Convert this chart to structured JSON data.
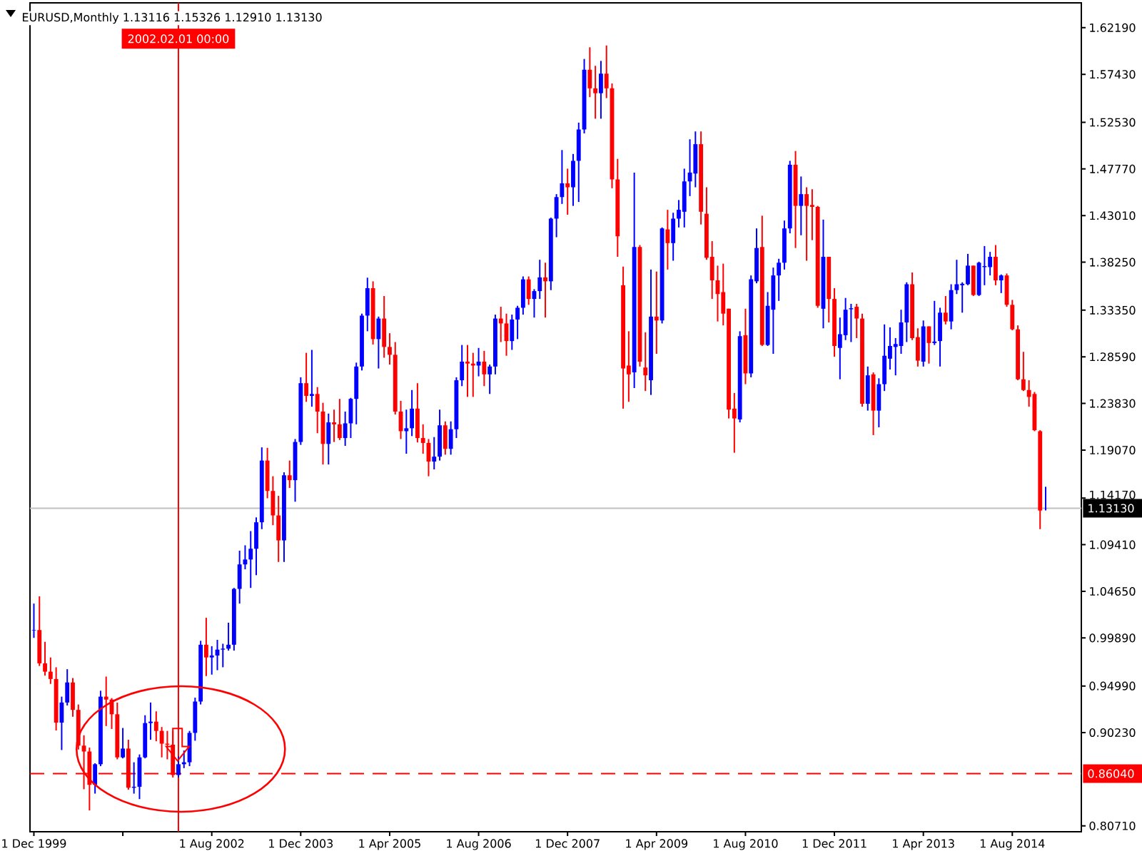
{
  "chart_data": {
    "type": "candlestick",
    "title": "EURUSD,Monthly 1.13116 1.15326 1.12910 1.13130",
    "x": [
      "1999-12",
      "2000-01",
      "2000-02",
      "2000-03",
      "2000-04",
      "2000-05",
      "2000-06",
      "2000-07",
      "2000-08",
      "2000-09",
      "2000-10",
      "2000-11",
      "2000-12",
      "2001-01",
      "2001-02",
      "2001-03",
      "2001-04",
      "2001-05",
      "2001-06",
      "2001-07",
      "2001-08",
      "2001-09",
      "2001-10",
      "2001-11",
      "2001-12",
      "2002-01",
      "2002-02",
      "2002-03",
      "2002-04",
      "2002-05",
      "2002-06",
      "2002-07",
      "2002-08",
      "2002-09",
      "2002-10",
      "2002-11",
      "2002-12",
      "2003-01",
      "2003-02",
      "2003-03",
      "2003-04",
      "2003-05",
      "2003-06",
      "2003-07",
      "2003-08",
      "2003-09",
      "2003-10",
      "2003-11",
      "2003-12",
      "2004-01",
      "2004-02",
      "2004-03",
      "2004-04",
      "2004-05",
      "2004-06",
      "2004-07",
      "2004-08",
      "2004-09",
      "2004-10",
      "2004-11",
      "2004-12",
      "2005-01",
      "2005-02",
      "2005-03",
      "2005-04",
      "2005-05",
      "2005-06",
      "2005-07",
      "2005-08",
      "2005-09",
      "2005-10",
      "2005-11",
      "2005-12",
      "2006-01",
      "2006-02",
      "2006-03",
      "2006-04",
      "2006-05",
      "2006-06",
      "2006-07",
      "2006-08",
      "2006-09",
      "2006-10",
      "2006-11",
      "2006-12",
      "2007-01",
      "2007-02",
      "2007-03",
      "2007-04",
      "2007-05",
      "2007-06",
      "2007-07",
      "2007-08",
      "2007-09",
      "2007-10",
      "2007-11",
      "2007-12",
      "2008-01",
      "2008-02",
      "2008-03",
      "2008-04",
      "2008-05",
      "2008-06",
      "2008-07",
      "2008-08",
      "2008-09",
      "2008-10",
      "2008-11",
      "2008-12",
      "2009-01",
      "2009-02",
      "2009-03",
      "2009-04",
      "2009-05",
      "2009-06",
      "2009-07",
      "2009-08",
      "2009-09",
      "2009-10",
      "2009-11",
      "2009-12",
      "2010-01",
      "2010-02",
      "2010-03",
      "2010-04",
      "2010-05",
      "2010-06",
      "2010-07",
      "2010-08",
      "2010-09",
      "2010-10",
      "2010-11",
      "2010-12",
      "2011-01",
      "2011-02",
      "2011-03",
      "2011-04",
      "2011-05",
      "2011-06",
      "2011-07",
      "2011-08",
      "2011-09",
      "2011-10",
      "2011-11",
      "2011-12",
      "2012-01",
      "2012-02",
      "2012-03",
      "2012-04",
      "2012-05",
      "2012-06",
      "2012-07",
      "2012-08",
      "2012-09",
      "2012-10",
      "2012-11",
      "2012-12",
      "2013-01",
      "2013-02",
      "2013-03",
      "2013-04",
      "2013-05",
      "2013-06",
      "2013-07",
      "2013-08",
      "2013-09",
      "2013-10",
      "2013-11",
      "2013-12",
      "2014-01",
      "2014-02",
      "2014-03",
      "2014-04",
      "2014-05",
      "2014-06",
      "2014-07",
      "2014-08",
      "2014-09",
      "2014-10",
      "2014-11",
      "2014-12",
      "2015-01",
      "2015-02"
    ],
    "ohlc": [
      [
        1.0065,
        1.034,
        0.999,
        1.007
      ],
      [
        1.007,
        1.0414,
        0.9703,
        0.973
      ],
      [
        0.973,
        0.995,
        0.9605,
        0.9645
      ],
      [
        0.9645,
        0.979,
        0.952,
        0.957
      ],
      [
        0.957,
        0.969,
        0.9045,
        0.9125
      ],
      [
        0.9125,
        0.939,
        0.8845,
        0.933
      ],
      [
        0.933,
        0.967,
        0.93,
        0.9535
      ],
      [
        0.9535,
        0.958,
        0.9185,
        0.9255
      ],
      [
        0.9255,
        0.931,
        0.885,
        0.889
      ],
      [
        0.889,
        0.8995,
        0.8445,
        0.883
      ],
      [
        0.883,
        0.887,
        0.8228,
        0.849
      ],
      [
        0.849,
        0.871,
        0.84,
        0.87
      ],
      [
        0.87,
        0.945,
        0.868,
        0.939
      ],
      [
        0.939,
        0.9595,
        0.909,
        0.936
      ],
      [
        0.936,
        0.9375,
        0.906,
        0.921
      ],
      [
        0.921,
        0.933,
        0.875,
        0.877
      ],
      [
        0.877,
        0.907,
        0.876,
        0.886
      ],
      [
        0.886,
        0.895,
        0.844,
        0.846
      ],
      [
        0.846,
        0.872,
        0.84,
        0.847
      ],
      [
        0.847,
        0.88,
        0.8344,
        0.877
      ],
      [
        0.877,
        0.92,
        0.876,
        0.912
      ],
      [
        0.912,
        0.933,
        0.895,
        0.9135
      ],
      [
        0.9135,
        0.924,
        0.8935,
        0.904
      ],
      [
        0.904,
        0.908,
        0.877,
        0.891
      ],
      [
        0.891,
        0.904,
        0.875,
        0.89
      ],
      [
        0.89,
        0.904,
        0.8565,
        0.859
      ],
      [
        0.859,
        0.878,
        0.8565,
        0.87
      ],
      [
        0.87,
        0.884,
        0.866,
        0.872
      ],
      [
        0.872,
        0.904,
        0.868,
        0.902
      ],
      [
        0.902,
        0.938,
        0.894,
        0.934
      ],
      [
        0.934,
        0.996,
        0.931,
        0.992
      ],
      [
        0.992,
        1.0195,
        0.96,
        0.979
      ],
      [
        0.979,
        0.9905,
        0.9615,
        0.981
      ],
      [
        0.981,
        0.997,
        0.966,
        0.987
      ],
      [
        0.987,
        0.993,
        0.969,
        0.988
      ],
      [
        0.988,
        1.0145,
        0.986,
        0.992
      ],
      [
        0.992,
        1.05,
        0.986,
        1.049
      ],
      [
        1.049,
        1.088,
        1.034,
        1.074
      ],
      [
        1.074,
        1.0935,
        1.069,
        1.079
      ],
      [
        1.079,
        1.108,
        1.05,
        1.09
      ],
      [
        1.09,
        1.122,
        1.063,
        1.117
      ],
      [
        1.117,
        1.1935,
        1.11,
        1.18
      ],
      [
        1.18,
        1.193,
        1.1415,
        1.149
      ],
      [
        1.149,
        1.164,
        1.114,
        1.124
      ],
      [
        1.124,
        1.144,
        1.0765,
        1.0985
      ],
      [
        1.0985,
        1.168,
        1.0765,
        1.165
      ],
      [
        1.165,
        1.18,
        1.152,
        1.16
      ],
      [
        1.16,
        1.202,
        1.138,
        1.199
      ],
      [
        1.199,
        1.265,
        1.196,
        1.259
      ],
      [
        1.259,
        1.29,
        1.24,
        1.246
      ],
      [
        1.246,
        1.293,
        1.235,
        1.248
      ],
      [
        1.248,
        1.255,
        1.208,
        1.23
      ],
      [
        1.23,
        1.239,
        1.176,
        1.197
      ],
      [
        1.197,
        1.228,
        1.176,
        1.219
      ],
      [
        1.219,
        1.232,
        1.199,
        1.217
      ],
      [
        1.217,
        1.243,
        1.201,
        1.203
      ],
      [
        1.203,
        1.23,
        1.195,
        1.218
      ],
      [
        1.218,
        1.244,
        1.203,
        1.243
      ],
      [
        1.243,
        1.28,
        1.217,
        1.276
      ],
      [
        1.276,
        1.33,
        1.272,
        1.328
      ],
      [
        1.328,
        1.3667,
        1.312,
        1.356
      ],
      [
        1.356,
        1.363,
        1.2985,
        1.304
      ],
      [
        1.304,
        1.327,
        1.274,
        1.325
      ],
      [
        1.325,
        1.348,
        1.285,
        1.296
      ],
      [
        1.296,
        1.31,
        1.278,
        1.288
      ],
      [
        1.288,
        1.301,
        1.227,
        1.23
      ],
      [
        1.23,
        1.241,
        1.202,
        1.21
      ],
      [
        1.21,
        1.232,
        1.187,
        1.213
      ],
      [
        1.213,
        1.252,
        1.205,
        1.233
      ],
      [
        1.233,
        1.259,
        1.1985,
        1.203
      ],
      [
        1.203,
        1.217,
        1.187,
        1.198
      ],
      [
        1.198,
        1.202,
        1.164,
        1.179
      ],
      [
        1.179,
        1.204,
        1.171,
        1.184
      ],
      [
        1.184,
        1.232,
        1.18,
        1.216
      ],
      [
        1.216,
        1.22,
        1.186,
        1.192
      ],
      [
        1.192,
        1.22,
        1.186,
        1.212
      ],
      [
        1.212,
        1.265,
        1.203,
        1.262
      ],
      [
        1.262,
        1.298,
        1.256,
        1.281
      ],
      [
        1.281,
        1.298,
        1.245,
        1.279
      ],
      [
        1.279,
        1.29,
        1.245,
        1.277
      ],
      [
        1.277,
        1.295,
        1.266,
        1.281
      ],
      [
        1.281,
        1.292,
        1.256,
        1.268
      ],
      [
        1.268,
        1.278,
        1.248,
        1.276
      ],
      [
        1.276,
        1.329,
        1.268,
        1.325
      ],
      [
        1.325,
        1.337,
        1.301,
        1.32
      ],
      [
        1.32,
        1.33,
        1.287,
        1.302
      ],
      [
        1.302,
        1.329,
        1.293,
        1.324
      ],
      [
        1.324,
        1.338,
        1.304,
        1.336
      ],
      [
        1.336,
        1.368,
        1.329,
        1.365
      ],
      [
        1.365,
        1.368,
        1.339,
        1.345
      ],
      [
        1.345,
        1.355,
        1.326,
        1.353
      ],
      [
        1.353,
        1.385,
        1.345,
        1.367
      ],
      [
        1.367,
        1.382,
        1.326,
        1.363
      ],
      [
        1.363,
        1.428,
        1.354,
        1.427
      ],
      [
        1.427,
        1.452,
        1.408,
        1.449
      ],
      [
        1.449,
        1.497,
        1.442,
        1.463
      ],
      [
        1.463,
        1.478,
        1.431,
        1.459
      ],
      [
        1.459,
        1.493,
        1.44,
        1.486
      ],
      [
        1.486,
        1.525,
        1.444,
        1.518
      ],
      [
        1.518,
        1.59,
        1.514,
        1.579
      ],
      [
        1.579,
        1.6019,
        1.551,
        1.56
      ],
      [
        1.56,
        1.583,
        1.529,
        1.555
      ],
      [
        1.555,
        1.588,
        1.529,
        1.575
      ],
      [
        1.575,
        1.6038,
        1.55,
        1.56
      ],
      [
        1.56,
        1.565,
        1.458,
        1.467
      ],
      [
        1.467,
        1.488,
        1.388,
        1.409
      ],
      [
        1.359,
        1.378,
        1.233,
        1.274
      ],
      [
        1.277,
        1.312,
        1.24,
        1.268
      ],
      [
        1.27,
        1.474,
        1.254,
        1.398
      ],
      [
        1.398,
        1.4,
        1.276,
        1.281
      ],
      [
        1.275,
        1.311,
        1.251,
        1.267
      ],
      [
        1.262,
        1.375,
        1.247,
        1.327
      ],
      [
        1.327,
        1.373,
        1.289,
        1.323
      ],
      [
        1.323,
        1.418,
        1.32,
        1.417
      ],
      [
        1.416,
        1.436,
        1.375,
        1.402
      ],
      [
        1.402,
        1.433,
        1.384,
        1.427
      ],
      [
        1.427,
        1.446,
        1.418,
        1.436
      ],
      [
        1.434,
        1.478,
        1.418,
        1.465
      ],
      [
        1.465,
        1.508,
        1.45,
        1.474
      ],
      [
        1.473,
        1.516,
        1.459,
        1.503
      ],
      [
        1.503,
        1.516,
        1.421,
        1.434
      ],
      [
        1.432,
        1.459,
        1.385,
        1.387
      ],
      [
        1.388,
        1.404,
        1.345,
        1.364
      ],
      [
        1.364,
        1.379,
        1.322,
        1.35
      ],
      [
        1.352,
        1.381,
        1.318,
        1.33
      ],
      [
        1.335,
        1.335,
        1.223,
        1.232
      ],
      [
        1.233,
        1.249,
        1.188,
        1.223
      ],
      [
        1.222,
        1.312,
        1.219,
        1.307
      ],
      [
        1.308,
        1.335,
        1.258,
        1.269
      ],
      [
        1.269,
        1.369,
        1.265,
        1.365
      ],
      [
        1.363,
        1.417,
        1.361,
        1.397
      ],
      [
        1.398,
        1.43,
        1.297,
        1.298
      ],
      [
        1.298,
        1.352,
        1.297,
        1.338
      ],
      [
        1.334,
        1.377,
        1.289,
        1.369
      ],
      [
        1.369,
        1.386,
        1.343,
        1.382
      ],
      [
        1.382,
        1.425,
        1.375,
        1.417
      ],
      [
        1.417,
        1.486,
        1.412,
        1.482
      ],
      [
        1.482,
        1.496,
        1.397,
        1.44
      ],
      [
        1.44,
        1.47,
        1.41,
        1.452
      ],
      [
        1.452,
        1.459,
        1.384,
        1.44
      ],
      [
        1.441,
        1.457,
        1.405,
        1.439
      ],
      [
        1.439,
        1.44,
        1.336,
        1.338
      ],
      [
        1.335,
        1.426,
        1.315,
        1.388
      ],
      [
        1.388,
        1.388,
        1.321,
        1.345
      ],
      [
        1.345,
        1.356,
        1.286,
        1.297
      ],
      [
        1.295,
        1.326,
        1.263,
        1.309
      ],
      [
        1.308,
        1.346,
        1.303,
        1.334
      ],
      [
        1.3345,
        1.34,
        1.301,
        1.3355
      ],
      [
        1.337,
        1.34,
        1.305,
        1.325
      ],
      [
        1.325,
        1.33,
        1.235,
        1.238
      ],
      [
        1.238,
        1.276,
        1.231,
        1.267
      ],
      [
        1.268,
        1.27,
        1.206,
        1.231
      ],
      [
        1.231,
        1.264,
        1.214,
        1.258
      ],
      [
        1.258,
        1.319,
        1.251,
        1.287
      ],
      [
        1.284,
        1.316,
        1.273,
        1.297
      ],
      [
        1.296,
        1.305,
        1.267,
        1.299
      ],
      [
        1.297,
        1.334,
        1.289,
        1.321
      ],
      [
        1.321,
        1.362,
        1.301,
        1.36
      ],
      [
        1.36,
        1.372,
        1.303,
        1.305
      ],
      [
        1.306,
        1.315,
        1.276,
        1.282
      ],
      [
        1.281,
        1.323,
        1.276,
        1.317
      ],
      [
        1.317,
        1.317,
        1.279,
        1.3
      ],
      [
        1.3,
        1.343,
        1.298,
        1.3015
      ],
      [
        1.302,
        1.336,
        1.276,
        1.331
      ],
      [
        1.331,
        1.348,
        1.319,
        1.322
      ],
      [
        1.322,
        1.36,
        1.314,
        1.354
      ],
      [
        1.354,
        1.385,
        1.35,
        1.36
      ],
      [
        1.359,
        1.362,
        1.331,
        1.3605
      ],
      [
        1.36,
        1.391,
        1.359,
        1.379
      ],
      [
        1.379,
        1.379,
        1.348,
        1.349
      ],
      [
        1.349,
        1.383,
        1.348,
        1.382
      ],
      [
        1.3775,
        1.399,
        1.359,
        1.3785
      ],
      [
        1.3775,
        1.393,
        1.369,
        1.388
      ],
      [
        1.388,
        1.4,
        1.359,
        1.364
      ],
      [
        1.364,
        1.37,
        1.351,
        1.369
      ],
      [
        1.369,
        1.371,
        1.337,
        1.339
      ],
      [
        1.339,
        1.344,
        1.313,
        1.314
      ],
      [
        1.314,
        1.318,
        1.262,
        1.263
      ],
      [
        1.263,
        1.291,
        1.251,
        1.252
      ],
      [
        1.252,
        1.262,
        1.235,
        1.245
      ],
      [
        1.248,
        1.25,
        1.21,
        1.211
      ],
      [
        1.21,
        1.211,
        1.11,
        1.129
      ],
      [
        1.13116,
        1.15326,
        1.1291,
        1.1313
      ]
    ],
    "colors": [
      "#0000ff",
      "#ff0000",
      "#ff0000",
      "#ff0000",
      "#ff0000",
      "#0000ff",
      "#0000ff",
      "#ff0000",
      "#ff0000",
      "#ff0000",
      "#ff0000",
      "#0000ff",
      "#0000ff",
      "#ff0000",
      "#ff0000",
      "#ff0000",
      "#0000ff",
      "#ff0000",
      "#0000ff",
      "#0000ff",
      "#0000ff",
      "#0000ff",
      "#ff0000",
      "#ff0000",
      "#ff0000",
      "#ff0000",
      "#0000ff",
      "#0000ff",
      "#0000ff",
      "#0000ff",
      "#0000ff",
      "#ff0000",
      "#0000ff",
      "#0000ff",
      "#0000ff",
      "#0000ff",
      "#0000ff",
      "#0000ff",
      "#0000ff",
      "#0000ff",
      "#0000ff",
      "#0000ff",
      "#ff0000",
      "#ff0000",
      "#ff0000",
      "#0000ff",
      "#ff0000",
      "#0000ff",
      "#0000ff",
      "#ff0000",
      "#0000ff",
      "#ff0000",
      "#ff0000",
      "#0000ff",
      "#ff0000",
      "#ff0000",
      "#0000ff",
      "#0000ff",
      "#0000ff",
      "#0000ff",
      "#0000ff",
      "#ff0000",
      "#0000ff",
      "#ff0000",
      "#ff0000",
      "#ff0000",
      "#ff0000",
      "#0000ff",
      "#0000ff",
      "#ff0000",
      "#ff0000",
      "#ff0000",
      "#0000ff",
      "#0000ff",
      "#ff0000",
      "#0000ff",
      "#0000ff",
      "#0000ff",
      "#ff0000",
      "#ff0000",
      "#0000ff",
      "#ff0000",
      "#0000ff",
      "#0000ff",
      "#ff0000",
      "#ff0000",
      "#0000ff",
      "#0000ff",
      "#0000ff",
      "#ff0000",
      "#0000ff",
      "#0000ff",
      "#ff0000",
      "#0000ff",
      "#0000ff",
      "#0000ff",
      "#ff0000",
      "#0000ff",
      "#0000ff",
      "#0000ff",
      "#ff0000",
      "#ff0000",
      "#0000ff",
      "#ff0000",
      "#ff0000",
      "#ff0000",
      "#ff0000",
      "#ff0000",
      "#0000ff",
      "#ff0000",
      "#ff0000",
      "#0000ff",
      "#ff0000",
      "#0000ff",
      "#ff0000",
      "#0000ff",
      "#0000ff",
      "#0000ff",
      "#0000ff",
      "#0000ff",
      "#ff0000",
      "#ff0000",
      "#ff0000",
      "#ff0000",
      "#ff0000",
      "#ff0000",
      "#ff0000",
      "#0000ff",
      "#ff0000",
      "#0000ff",
      "#0000ff",
      "#ff0000",
      "#0000ff",
      "#0000ff",
      "#0000ff",
      "#0000ff",
      "#0000ff",
      "#ff0000",
      "#0000ff",
      "#ff0000",
      "#ff0000",
      "#ff0000",
      "#0000ff",
      "#ff0000",
      "#ff0000",
      "#0000ff",
      "#0000ff",
      "#0000ff",
      "#ff0000",
      "#ff0000",
      "#0000ff",
      "#ff0000",
      "#0000ff",
      "#0000ff",
      "#0000ff",
      "#0000ff",
      "#0000ff",
      "#0000ff",
      "#ff0000",
      "#ff0000",
      "#0000ff",
      "#ff0000",
      "#0000ff",
      "#0000ff",
      "#ff0000",
      "#0000ff",
      "#0000ff",
      "#0000ff",
      "#0000ff",
      "#ff0000",
      "#0000ff",
      "#0000ff",
      "#0000ff",
      "#ff0000",
      "#0000ff",
      "#ff0000",
      "#ff0000",
      "#ff0000",
      "#ff0000",
      "#ff0000",
      "#ff0000",
      "#ff0000",
      "#0000ff"
    ],
    "xlim": [
      "1999-11-10",
      "2015-08-14"
    ],
    "ylim": [
      0.8011,
      1.6473
    ],
    "xticks": [
      {
        "value": "1999-12",
        "label": "1 Dec 1999"
      },
      {
        "value": "2001-04",
        "label": null
      },
      {
        "value": "2002-08",
        "label": "1 Aug 2002"
      },
      {
        "value": "2003-12",
        "label": "1 Dec 2003"
      },
      {
        "value": "2005-04",
        "label": "1 Apr 2005"
      },
      {
        "value": "2006-08",
        "label": "1 Aug 2006"
      },
      {
        "value": "2007-12",
        "label": "1 Dec 2007"
      },
      {
        "value": "2009-04",
        "label": "1 Apr 2009"
      },
      {
        "value": "2010-08",
        "label": "1 Aug 2010"
      },
      {
        "value": "2011-12",
        "label": "1 Dec 2011"
      },
      {
        "value": "2013-04",
        "label": "1 Apr 2013"
      },
      {
        "value": "2014-08",
        "label": "1 Aug 2014"
      }
    ],
    "yticks": [
      {
        "value": 1.6219,
        "label": "1.62190"
      },
      {
        "value": 1.5743,
        "label": "1.57430"
      },
      {
        "value": 1.5253,
        "label": "1.52530"
      },
      {
        "value": 1.4777,
        "label": "1.47770"
      },
      {
        "value": 1.4301,
        "label": "1.43010"
      },
      {
        "value": 1.3825,
        "label": "1.38250"
      },
      {
        "value": 1.3335,
        "label": "1.33350"
      },
      {
        "value": 1.2859,
        "label": "1.28590"
      },
      {
        "value": 1.2383,
        "label": "1.23830"
      },
      {
        "value": 1.1907,
        "label": "1.19070"
      },
      {
        "value": 1.1417,
        "label": "1.14170"
      },
      {
        "value": 1.0941,
        "label": "1.09410"
      },
      {
        "value": 1.0465,
        "label": "1.04650"
      },
      {
        "value": 0.9989,
        "label": "0.99890"
      },
      {
        "value": 0.9499,
        "label": "0.94990"
      },
      {
        "value": 0.9023,
        "label": "0.90230"
      },
      {
        "value": 0.8071,
        "label": "0.80710"
      }
    ],
    "ref_lines": [
      {
        "axis": "y",
        "value": 1.1313,
        "label": "1.13130",
        "color": "#c0c0c0"
      },
      {
        "axis": "y",
        "value": 0.8604,
        "label": "0.86040",
        "color": "#ff0000",
        "line_style": "dashed"
      },
      {
        "axis": "x",
        "value": "2002-02",
        "label": "2002.02.01 00:00",
        "color": "#ff0000"
      }
    ]
  }
}
